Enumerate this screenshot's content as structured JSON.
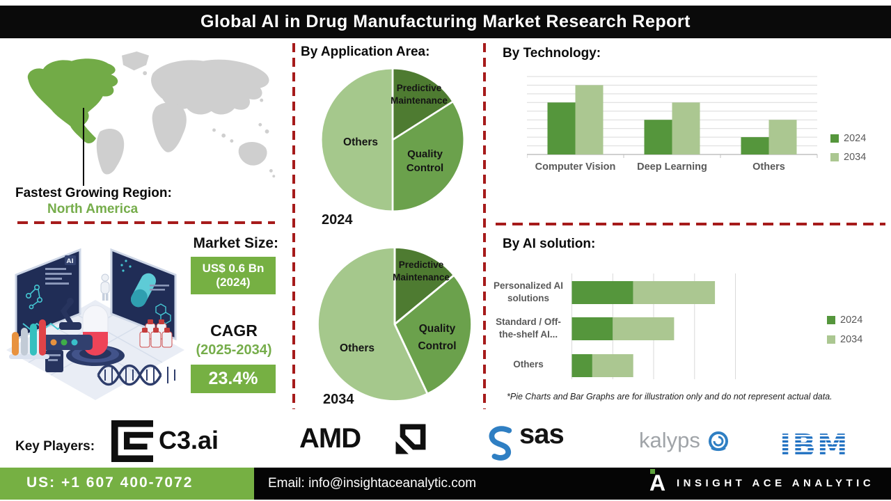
{
  "header": {
    "title": "Global AI in Drug Manufacturing Market Research Report"
  },
  "region": {
    "label": "Fastest Growing Region:",
    "value": "North America"
  },
  "market": {
    "size_label": "Market Size:",
    "size_value": "US$ 0.6 Bn",
    "size_year": "(2024)",
    "cagr_label": "CAGR",
    "cagr_period": "(2025-2034)",
    "cagr_value": "23.4%"
  },
  "sections": {
    "application": "By Application Area:",
    "technology": "By Technology:",
    "ai_solution": "By AI solution:"
  },
  "note": "*Pie Charts and Bar Graphs are for illustration only and do not represent actual data.",
  "key_players": {
    "label": "Key Players:",
    "companies": [
      "C3.ai",
      "AMD",
      "SAS",
      "Kalypso",
      "IBM"
    ],
    "c3_text": "C3.ai",
    "amd_text": "AMD",
    "sas_text": "sas",
    "kalypso_prefix": "kalyps",
    "ibm_text": "IBM"
  },
  "footer": {
    "phone": "US: +1 607 400-7072",
    "email": "Email: info@insightaceanalytic.com",
    "brand": "INSIGHT ACE ANALYTIC",
    "brand_mark": "A"
  },
  "colors": {
    "accent_green": "#76b043",
    "pie_dark_green": "#4e7b31",
    "pie_mid_green": "#6ba14c",
    "pie_light_green": "#a5c88c",
    "bar_2024": "#55963c",
    "bar_2034": "#abc791",
    "dashed_red": "#a61b1b",
    "map_highlight": "#72ab47",
    "map_gray": "#cfcfcf",
    "banner_bg": "#0a0a0a"
  },
  "chart_data": [
    {
      "type": "pie",
      "title": "By Application Area:",
      "year_label": "2024",
      "labels": [
        "Predictive Maintenance",
        "Quality Control",
        "Others"
      ],
      "display_labels": [
        [
          "Predictive",
          "Maintenance"
        ],
        [
          "Quality",
          "Control"
        ],
        [
          "Others"
        ]
      ],
      "values": [
        16,
        34,
        50
      ],
      "colors": [
        "#4e7b31",
        "#6ba14c",
        "#a5c88c"
      ],
      "note": "illustrative proportions, clockwise from top"
    },
    {
      "type": "pie",
      "title": "By Application Area:",
      "year_label": "2034",
      "labels": [
        "Predictive Maintenance",
        "Quality Control",
        "Others"
      ],
      "display_labels": [
        [
          "Predictive",
          "Maintenance"
        ],
        [
          "Quality",
          "Control"
        ],
        [
          "Others"
        ]
      ],
      "values": [
        14,
        29,
        57
      ],
      "colors": [
        "#4e7b31",
        "#6ba14c",
        "#a5c88c"
      ],
      "note": "illustrative proportions, clockwise from top"
    },
    {
      "type": "bar",
      "title": "By Technology:",
      "categories": [
        "Computer Vision",
        "Deep Learning",
        "Others"
      ],
      "series": [
        {
          "name": "2024",
          "values": [
            60,
            40,
            20
          ]
        },
        {
          "name": "2034",
          "values": [
            80,
            60,
            40
          ]
        }
      ],
      "colors": [
        "#55963c",
        "#abc791"
      ],
      "ylim": [
        0,
        90
      ],
      "grid_step": 10,
      "legend_position": "right"
    },
    {
      "type": "stacked_hbar",
      "title": "By AI solution:",
      "categories": [
        "Personalized AI solutions",
        "Standard / Off-the-shelf AI...",
        "Others"
      ],
      "display_labels": [
        [
          "Personalized AI",
          "solutions"
        ],
        [
          "Standard / Off-",
          "the-shelf AI..."
        ],
        [
          "Others"
        ]
      ],
      "series": [
        {
          "name": "2024",
          "values": [
            1.5,
            1.0,
            0.5
          ]
        },
        {
          "name": "2034",
          "values": [
            2.0,
            1.5,
            1.0
          ]
        }
      ],
      "colors": [
        "#55963c",
        "#abc791"
      ],
      "xlim": [
        0,
        4
      ],
      "grid_step": 1,
      "legend_position": "right"
    }
  ]
}
